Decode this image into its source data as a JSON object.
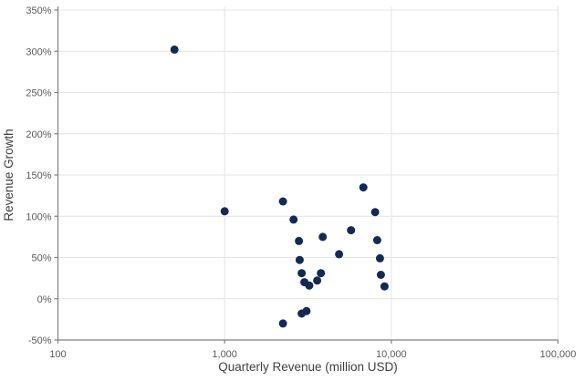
{
  "chart_data": {
    "type": "scatter",
    "title": "",
    "xlabel": "Quarterly Revenue (million USD)",
    "ylabel": "Revenue Growth",
    "x_scale": "log",
    "xlim": [
      100,
      100000
    ],
    "ylim": [
      -50,
      350
    ],
    "grid": true,
    "legend_position": "none",
    "x_ticks": [
      {
        "value": 100,
        "label": "100"
      },
      {
        "value": 1000,
        "label": "1,000"
      },
      {
        "value": 10000,
        "label": "10,000"
      },
      {
        "value": 100000,
        "label": "100,000"
      }
    ],
    "y_ticks": [
      {
        "value": 350,
        "label": "350%"
      },
      {
        "value": 300,
        "label": "300%"
      },
      {
        "value": 250,
        "label": "250%"
      },
      {
        "value": 200,
        "label": "200%"
      },
      {
        "value": 150,
        "label": "150%"
      },
      {
        "value": 100,
        "label": "100%"
      },
      {
        "value": 50,
        "label": "50%"
      },
      {
        "value": 0,
        "label": "0%"
      },
      {
        "value": -50,
        "label": "-50%"
      }
    ],
    "points": [
      {
        "x": 500,
        "y": 302
      },
      {
        "x": 1000,
        "y": 106
      },
      {
        "x": 2240,
        "y": 118
      },
      {
        "x": 2240,
        "y": -30
      },
      {
        "x": 2590,
        "y": 96
      },
      {
        "x": 2790,
        "y": 70
      },
      {
        "x": 2820,
        "y": 47
      },
      {
        "x": 2900,
        "y": 31
      },
      {
        "x": 2900,
        "y": -18
      },
      {
        "x": 3010,
        "y": 20
      },
      {
        "x": 3100,
        "y": -15
      },
      {
        "x": 3220,
        "y": 16
      },
      {
        "x": 3590,
        "y": 22
      },
      {
        "x": 3780,
        "y": 31
      },
      {
        "x": 3880,
        "y": 75
      },
      {
        "x": 4860,
        "y": 54
      },
      {
        "x": 5730,
        "y": 83
      },
      {
        "x": 6800,
        "y": 135
      },
      {
        "x": 8000,
        "y": 105
      },
      {
        "x": 8230,
        "y": 71
      },
      {
        "x": 8550,
        "y": 49
      },
      {
        "x": 8660,
        "y": 29
      },
      {
        "x": 9100,
        "y": 15
      }
    ],
    "colors": {
      "marker": "#152a52",
      "axis_line": "#7f7f7f",
      "gridline": "#e4e4e4",
      "tick_label": "#595959",
      "axis_title": "#404040",
      "background": "#ffffff"
    },
    "marker_radius_px": 4.5
  }
}
